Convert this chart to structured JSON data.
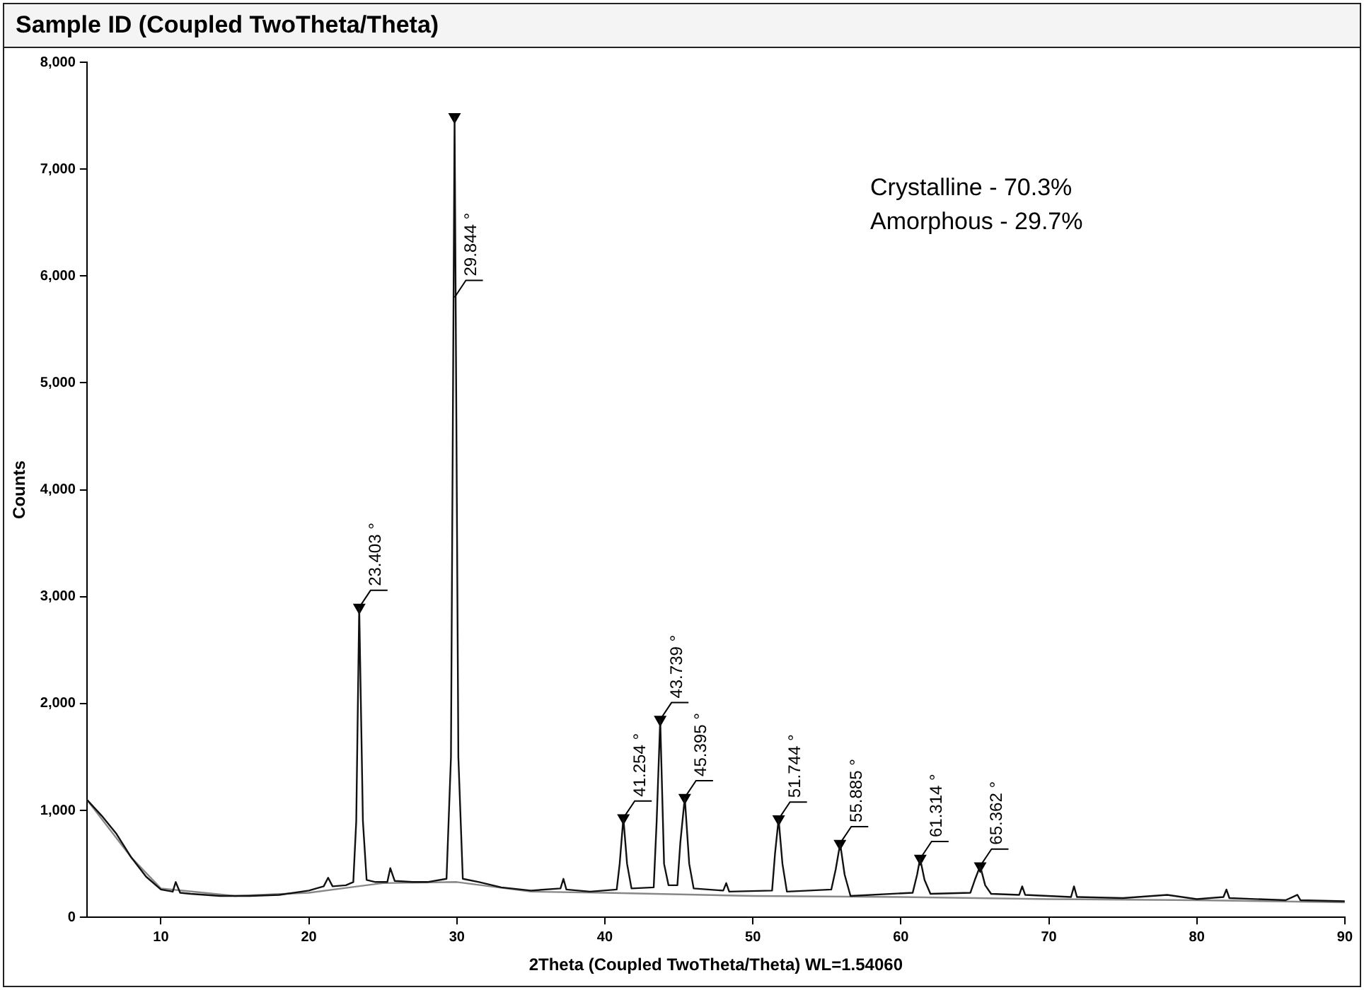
{
  "chart_data": {
    "type": "line",
    "title": "Sample ID (Coupled TwoTheta/Theta)",
    "xlabel": "2Theta (Coupled TwoTheta/Theta) WL=1.54060",
    "ylabel": "Counts",
    "xlim": [
      5,
      90
    ],
    "xticks": [
      10,
      20,
      30,
      40,
      50,
      60,
      70,
      80,
      90
    ],
    "ylim": [
      0,
      8000
    ],
    "yticks": [
      0,
      {
        "value": 1000,
        "label": "1,000"
      },
      {
        "value": 2000,
        "label": "2,000"
      },
      {
        "value": 3000,
        "label": "3,000"
      },
      {
        "value": 4000,
        "label": "4,000"
      },
      {
        "value": 5000,
        "label": "5,000"
      },
      {
        "value": 6000,
        "label": "6,000"
      },
      {
        "value": 7000,
        "label": "7,000"
      },
      {
        "value": 8000,
        "label": "8,000"
      }
    ],
    "grid": false,
    "legend": false,
    "marker": "none",
    "line_style": "solid",
    "series": [
      {
        "color": "#111111",
        "x": [
          5,
          6,
          7,
          8,
          9,
          10,
          10.8,
          11,
          11.3,
          12,
          14,
          16,
          18,
          20,
          21,
          21.3,
          21.6,
          22.5,
          23.0,
          23.2,
          23.4,
          23.65,
          23.9,
          24.5,
          25.3,
          25.5,
          25.8,
          27,
          28,
          29.3,
          29.6,
          29.844,
          30.1,
          30.4,
          31.5,
          33,
          35,
          37,
          37.2,
          37.4,
          39,
          40.8,
          41.0,
          41.25,
          41.5,
          41.8,
          43.3,
          43.5,
          43.74,
          44.0,
          44.3,
          44.9,
          45.1,
          45.4,
          45.7,
          46.0,
          48,
          48.2,
          48.4,
          51.3,
          51.5,
          51.74,
          52.0,
          52.3,
          55.3,
          55.6,
          55.9,
          56.2,
          56.6,
          60.8,
          61.1,
          61.3,
          61.6,
          62,
          64.7,
          65.0,
          65.36,
          65.7,
          66.1,
          68,
          68.2,
          68.4,
          71.5,
          71.7,
          71.9,
          75,
          77,
          78,
          80,
          81.8,
          82,
          82.2,
          86,
          86.8,
          87,
          90
        ],
        "values": [
          1100,
          950,
          780,
          560,
          380,
          260,
          240,
          330,
          230,
          220,
          200,
          200,
          210,
          250,
          290,
          370,
          290,
          300,
          330,
          900,
          2900,
          900,
          350,
          330,
          330,
          460,
          340,
          330,
          330,
          360,
          1500,
          7490,
          1500,
          360,
          330,
          280,
          250,
          270,
          360,
          260,
          240,
          260,
          500,
          930,
          500,
          270,
          280,
          900,
          1850,
          500,
          300,
          300,
          700,
          1120,
          500,
          270,
          250,
          320,
          240,
          250,
          600,
          920,
          500,
          240,
          260,
          450,
          690,
          400,
          200,
          230,
          400,
          550,
          350,
          220,
          230,
          350,
          480,
          300,
          220,
          210,
          290,
          210,
          190,
          290,
          190,
          180,
          200,
          210,
          170,
          190,
          260,
          180,
          160,
          210,
          160,
          150
        ]
      },
      {
        "color": "#888888",
        "x": [
          5,
          8,
          10,
          15,
          20,
          25,
          30,
          35,
          40,
          50,
          60,
          70,
          80,
          90
        ],
        "values": [
          1100,
          560,
          270,
          200,
          230,
          320,
          330,
          240,
          230,
          200,
          190,
          170,
          160,
          140
        ]
      },
      {
        "type": "scatter",
        "marker": "triangle",
        "color": "#000000",
        "x": [
          23.403,
          29.844,
          41.254,
          43.739,
          45.395,
          51.744,
          55.885,
          61.314,
          65.362
        ],
        "values": [
          2900,
          7490,
          930,
          1850,
          1120,
          920,
          690,
          550,
          480
        ]
      }
    ],
    "annotations": [
      {
        "text": "23.403 °",
        "x": 23.403,
        "y": 2900
      },
      {
        "text": "29.844 °",
        "x": 29.844,
        "y": 5800
      },
      {
        "text": "41.254 °",
        "x": 41.254,
        "y": 930
      },
      {
        "text": "43.739 °",
        "x": 43.739,
        "y": 1850
      },
      {
        "text": "45.395 °",
        "x": 45.395,
        "y": 1120
      },
      {
        "text": "51.744 °",
        "x": 51.744,
        "y": 920
      },
      {
        "text": "55.885 °",
        "x": 55.885,
        "y": 690
      },
      {
        "text": "61.314 °",
        "x": 61.314,
        "y": 550
      },
      {
        "text": "65.362 °",
        "x": 65.362,
        "y": 480
      },
      "Crystalline - 70.3%",
      "Amorphous - 29.7%"
    ]
  }
}
